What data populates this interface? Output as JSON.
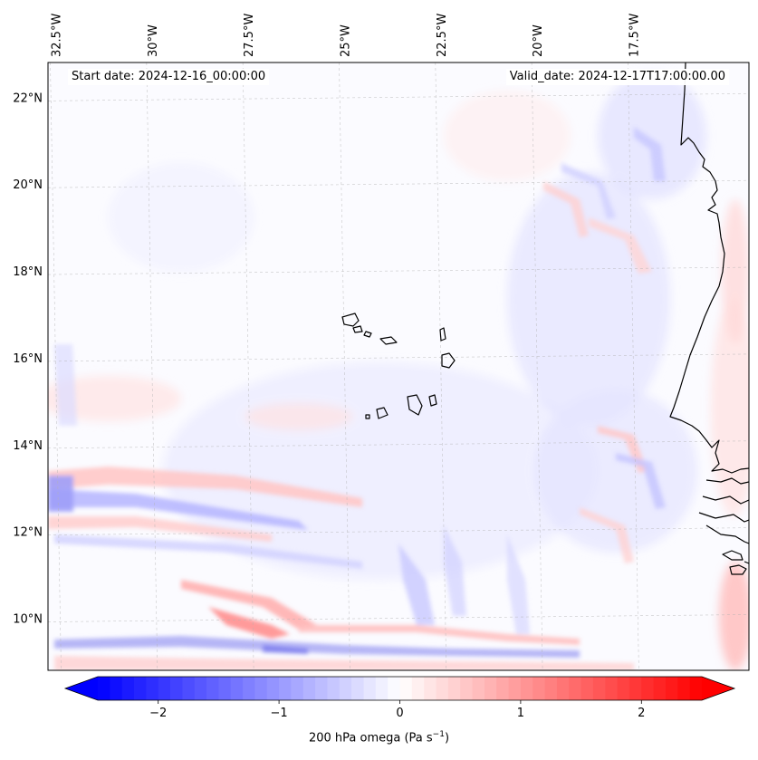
{
  "header": {
    "start_date": "Start date: 2024-12-16_00:00:00",
    "valid_date": "Valid_date: 2024-12-17T17:00:00.00"
  },
  "map": {
    "variable": "200 hPa omega",
    "projection_extent": {
      "lon": [
        -32.7,
        -14.5
      ],
      "lat": [
        8.8,
        22.8
      ]
    },
    "lon_ticks": [
      {
        "value": -32.5,
        "label": "32.5°W"
      },
      {
        "value": -30.0,
        "label": "30°W"
      },
      {
        "value": -27.5,
        "label": "27.5°W"
      },
      {
        "value": -25.0,
        "label": "25°W"
      },
      {
        "value": -22.5,
        "label": "22.5°W"
      },
      {
        "value": -20.0,
        "label": "20°W"
      },
      {
        "value": -17.5,
        "label": "17.5°W"
      }
    ],
    "lat_ticks": [
      {
        "value": 22,
        "label": "22°N"
      },
      {
        "value": 20,
        "label": "20°N"
      },
      {
        "value": 18,
        "label": "18°N"
      },
      {
        "value": 16,
        "label": "16°N"
      },
      {
        "value": 14,
        "label": "14°N"
      },
      {
        "value": 12,
        "label": "12°N"
      },
      {
        "value": 10,
        "label": "10°N"
      }
    ],
    "gridlines": true,
    "coastline_color": "#000000"
  },
  "colorbar": {
    "label_prefix": "200 hPa omega (Pa s",
    "label_exp": "−1",
    "label_suffix": ")",
    "vmin": -2.5,
    "vmax": 2.5,
    "extend": "both",
    "cmap": "bwr",
    "ticks": [
      {
        "value": -2,
        "label": "−2"
      },
      {
        "value": -1,
        "label": "−1"
      },
      {
        "value": 0,
        "label": "0"
      },
      {
        "value": 1,
        "label": "1"
      },
      {
        "value": 2,
        "label": "2"
      }
    ]
  }
}
